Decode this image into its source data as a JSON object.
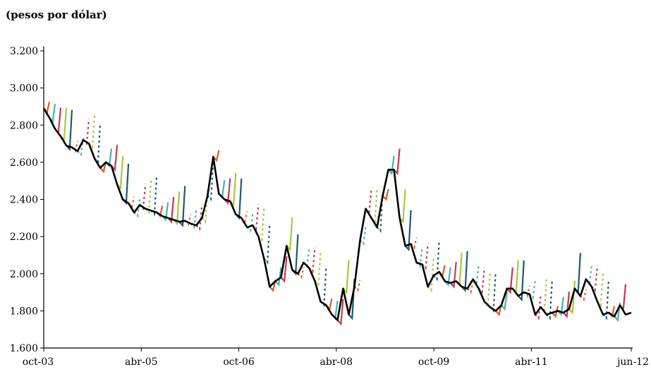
{
  "chart_data": {
    "type": "line",
    "unit_label": "(pesos por dólar)",
    "y_ticks": [
      "3.200",
      "3.000",
      "2.800",
      "2.600",
      "2.400",
      "2.200",
      "2.000",
      "1.800",
      "1.600"
    ],
    "y_tick_values": [
      3200,
      3000,
      2800,
      2600,
      2400,
      2200,
      2000,
      1800,
      1600
    ],
    "x_ticks": [
      "oct-03",
      "abr-05",
      "oct-06",
      "abr-08",
      "oct-09",
      "abr-11",
      "jun-12"
    ],
    "ylim": [
      1600,
      3200
    ],
    "grid": false,
    "legend": "none",
    "actual": {
      "values": [
        2890,
        2840,
        2780,
        2740,
        2690,
        2680,
        2660,
        2720,
        2700,
        2620,
        2570,
        2600,
        2580,
        2480,
        2400,
        2380,
        2330,
        2370,
        2350,
        2340,
        2330,
        2310,
        2300,
        2290,
        2280,
        2285,
        2270,
        2260,
        2300,
        2420,
        2630,
        2430,
        2400,
        2390,
        2320,
        2300,
        2250,
        2260,
        2200,
        2080,
        1930,
        1960,
        1980,
        2150,
        2020,
        2000,
        2060,
        2030,
        1960,
        1850,
        1830,
        1780,
        1750,
        1920,
        1780,
        1930,
        2180,
        2350,
        2300,
        2250,
        2420,
        2560,
        2560,
        2300,
        2150,
        2160,
        2060,
        2050,
        1930,
        1990,
        2010,
        1960,
        1950,
        1960,
        1930,
        1920,
        1970,
        1920,
        1850,
        1820,
        1800,
        1830,
        1920,
        1920,
        1880,
        1900,
        1890,
        1780,
        1820,
        1780,
        1790,
        1800,
        1790,
        1810,
        1920,
        1880,
        1970,
        1930,
        1850,
        1780,
        1790,
        1770,
        1830,
        1780,
        1790
      ],
      "color": "#000000"
    },
    "forecast_colors": [
      "#e05a1c",
      "#44b3b2",
      "#c9374a",
      "#a8c93a",
      "#1d5a6b"
    ],
    "forecast_slope": 0.35
  }
}
